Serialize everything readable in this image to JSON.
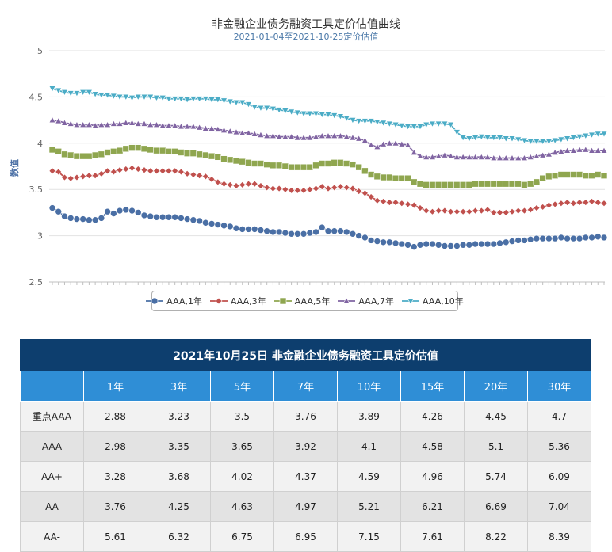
{
  "chart_data": {
    "type": "line",
    "title": "非金融企业债务融资工具定价估值曲线",
    "subtitle": "2021-01-04至2021-10-25定价估值",
    "ylabel": "数值",
    "xlabel": "",
    "ylim": [
      2.5,
      5
    ],
    "yticks": [
      "2.5",
      "3",
      "3.5",
      "4",
      "4.5",
      "5"
    ],
    "grid": true,
    "legend_position": "bottom",
    "num_points": 91,
    "series": [
      {
        "name": "AAA,1年",
        "color": "#4a6fa5",
        "marker": "circle",
        "values": [
          3.3,
          3.26,
          3.21,
          3.19,
          3.18,
          3.18,
          3.17,
          3.17,
          3.19,
          3.26,
          3.24,
          3.27,
          3.28,
          3.27,
          3.25,
          3.22,
          3.21,
          3.2,
          3.2,
          3.2,
          3.2,
          3.19,
          3.18,
          3.17,
          3.16,
          3.14,
          3.13,
          3.12,
          3.11,
          3.1,
          3.08,
          3.07,
          3.07,
          3.07,
          3.06,
          3.05,
          3.04,
          3.04,
          3.03,
          3.02,
          3.02,
          3.02,
          3.03,
          3.04,
          3.09,
          3.05,
          3.05,
          3.05,
          3.04,
          3.02,
          3.0,
          2.98,
          2.95,
          2.94,
          2.93,
          2.93,
          2.92,
          2.91,
          2.9,
          2.88,
          2.9,
          2.91,
          2.91,
          2.9,
          2.89,
          2.89,
          2.89,
          2.9,
          2.9,
          2.91,
          2.91,
          2.91,
          2.91,
          2.92,
          2.93,
          2.94,
          2.95,
          2.95,
          2.96,
          2.97,
          2.97,
          2.97,
          2.97,
          2.98,
          2.97,
          2.97,
          2.97,
          2.98,
          2.98,
          2.99,
          2.98
        ]
      },
      {
        "name": "AAA,3年",
        "color": "#c0504d",
        "marker": "diamond",
        "values": [
          3.7,
          3.69,
          3.63,
          3.62,
          3.63,
          3.64,
          3.65,
          3.65,
          3.67,
          3.7,
          3.69,
          3.71,
          3.72,
          3.73,
          3.72,
          3.71,
          3.7,
          3.7,
          3.7,
          3.7,
          3.7,
          3.69,
          3.67,
          3.66,
          3.65,
          3.64,
          3.61,
          3.58,
          3.56,
          3.55,
          3.54,
          3.55,
          3.56,
          3.56,
          3.54,
          3.52,
          3.51,
          3.51,
          3.5,
          3.49,
          3.49,
          3.49,
          3.5,
          3.51,
          3.53,
          3.51,
          3.52,
          3.53,
          3.52,
          3.51,
          3.48,
          3.46,
          3.42,
          3.38,
          3.37,
          3.36,
          3.36,
          3.35,
          3.34,
          3.33,
          3.3,
          3.27,
          3.26,
          3.27,
          3.27,
          3.26,
          3.26,
          3.26,
          3.26,
          3.27,
          3.27,
          3.28,
          3.25,
          3.25,
          3.25,
          3.26,
          3.27,
          3.27,
          3.28,
          3.3,
          3.31,
          3.33,
          3.34,
          3.35,
          3.36,
          3.35,
          3.36,
          3.36,
          3.37,
          3.36,
          3.35
        ]
      },
      {
        "name": "AAA,5年",
        "color": "#8fa64f",
        "marker": "square",
        "values": [
          3.93,
          3.91,
          3.88,
          3.87,
          3.86,
          3.86,
          3.86,
          3.87,
          3.88,
          3.9,
          3.91,
          3.92,
          3.94,
          3.95,
          3.95,
          3.94,
          3.93,
          3.92,
          3.92,
          3.91,
          3.91,
          3.9,
          3.89,
          3.89,
          3.88,
          3.87,
          3.86,
          3.85,
          3.83,
          3.82,
          3.81,
          3.8,
          3.79,
          3.78,
          3.78,
          3.77,
          3.76,
          3.76,
          3.75,
          3.74,
          3.74,
          3.74,
          3.74,
          3.76,
          3.78,
          3.78,
          3.79,
          3.79,
          3.78,
          3.77,
          3.74,
          3.7,
          3.66,
          3.64,
          3.63,
          3.63,
          3.62,
          3.62,
          3.62,
          3.58,
          3.56,
          3.55,
          3.55,
          3.55,
          3.55,
          3.55,
          3.55,
          3.55,
          3.55,
          3.56,
          3.56,
          3.56,
          3.56,
          3.56,
          3.56,
          3.56,
          3.56,
          3.55,
          3.56,
          3.58,
          3.62,
          3.64,
          3.65,
          3.66,
          3.66,
          3.66,
          3.66,
          3.65,
          3.65,
          3.66,
          3.65
        ]
      },
      {
        "name": "AAA,7年",
        "color": "#8064a2",
        "marker": "triangle-up",
        "values": [
          4.25,
          4.24,
          4.22,
          4.21,
          4.2,
          4.2,
          4.2,
          4.19,
          4.2,
          4.2,
          4.21,
          4.21,
          4.22,
          4.22,
          4.21,
          4.21,
          4.2,
          4.2,
          4.19,
          4.19,
          4.19,
          4.18,
          4.18,
          4.18,
          4.17,
          4.16,
          4.16,
          4.15,
          4.14,
          4.13,
          4.12,
          4.11,
          4.11,
          4.1,
          4.09,
          4.08,
          4.08,
          4.07,
          4.07,
          4.07,
          4.06,
          4.06,
          4.06,
          4.07,
          4.08,
          4.08,
          4.08,
          4.08,
          4.07,
          4.06,
          4.05,
          4.03,
          3.98,
          3.96,
          3.99,
          4.0,
          4.0,
          3.99,
          3.98,
          3.9,
          3.86,
          3.85,
          3.85,
          3.86,
          3.87,
          3.86,
          3.85,
          3.85,
          3.85,
          3.85,
          3.85,
          3.85,
          3.84,
          3.84,
          3.84,
          3.84,
          3.84,
          3.84,
          3.85,
          3.86,
          3.87,
          3.88,
          3.9,
          3.91,
          3.92,
          3.92,
          3.93,
          3.93,
          3.92,
          3.92,
          3.92
        ]
      },
      {
        "name": "AAA,10年",
        "color": "#4bacc6",
        "marker": "triangle-down",
        "values": [
          4.59,
          4.57,
          4.55,
          4.54,
          4.54,
          4.55,
          4.55,
          4.53,
          4.52,
          4.52,
          4.51,
          4.5,
          4.5,
          4.49,
          4.5,
          4.5,
          4.5,
          4.49,
          4.49,
          4.48,
          4.48,
          4.48,
          4.47,
          4.48,
          4.48,
          4.48,
          4.47,
          4.47,
          4.46,
          4.45,
          4.44,
          4.44,
          4.42,
          4.39,
          4.38,
          4.38,
          4.37,
          4.36,
          4.35,
          4.34,
          4.33,
          4.32,
          4.32,
          4.32,
          4.31,
          4.31,
          4.3,
          4.29,
          4.27,
          4.25,
          4.24,
          4.24,
          4.24,
          4.23,
          4.22,
          4.21,
          4.2,
          4.19,
          4.18,
          4.18,
          4.18,
          4.2,
          4.21,
          4.21,
          4.21,
          4.2,
          4.12,
          4.06,
          4.05,
          4.06,
          4.07,
          4.06,
          4.06,
          4.06,
          4.05,
          4.05,
          4.04,
          4.03,
          4.02,
          4.02,
          4.02,
          4.02,
          4.03,
          4.04,
          4.05,
          4.06,
          4.07,
          4.08,
          4.09,
          4.1,
          4.1
        ]
      }
    ]
  },
  "table": {
    "title": "2021年10月25日  非金融企业债务融资工具定价估值",
    "columns": [
      "1年",
      "3年",
      "5年",
      "7年",
      "10年",
      "15年",
      "20年",
      "30年"
    ],
    "rows": [
      {
        "label": "重点AAA",
        "values": [
          "2.88",
          "3.23",
          "3.5",
          "3.76",
          "3.89",
          "4.26",
          "4.45",
          "4.7"
        ]
      },
      {
        "label": "AAA",
        "values": [
          "2.98",
          "3.35",
          "3.65",
          "3.92",
          "4.1",
          "4.58",
          "5.1",
          "5.36"
        ]
      },
      {
        "label": "AA+",
        "values": [
          "3.28",
          "3.68",
          "4.02",
          "4.37",
          "4.59",
          "4.96",
          "5.74",
          "6.09"
        ]
      },
      {
        "label": "AA",
        "values": [
          "3.76",
          "4.25",
          "4.63",
          "4.97",
          "5.21",
          "6.21",
          "6.69",
          "7.04"
        ]
      },
      {
        "label": "AA-",
        "values": [
          "5.61",
          "6.32",
          "6.75",
          "6.95",
          "7.15",
          "7.61",
          "8.22",
          "8.39"
        ]
      }
    ]
  },
  "colors": {
    "table_title_bg": "#0d3e6e",
    "table_header_bg": "#2f8ed6",
    "title_text": "#333333",
    "subtitle_text": "#4a78a8"
  }
}
